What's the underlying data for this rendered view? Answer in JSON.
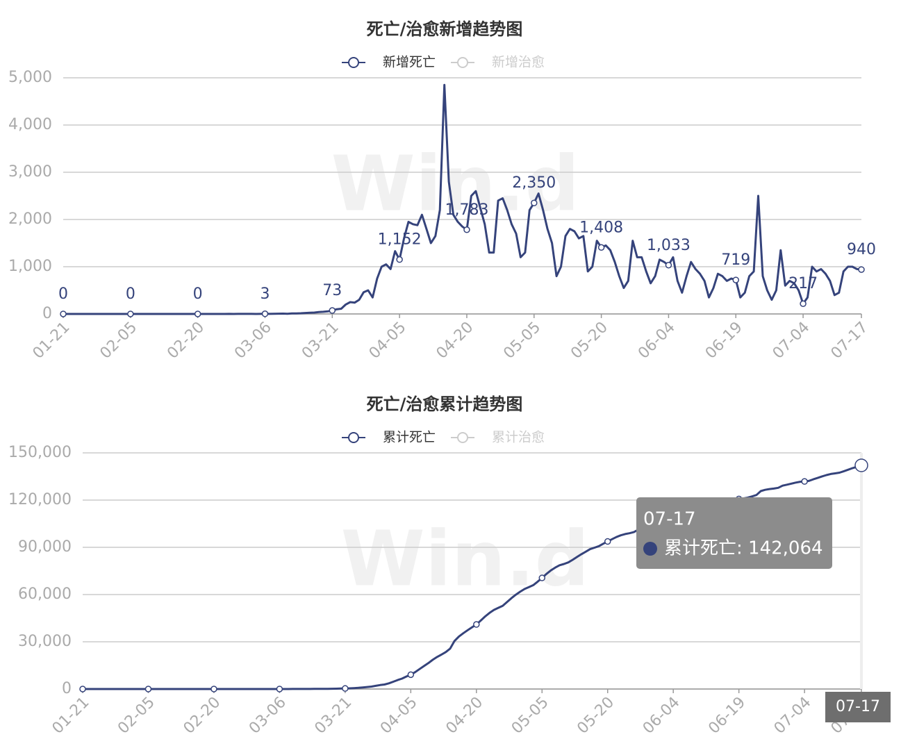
{
  "chart_data": [
    {
      "type": "line",
      "title": "死亡/治愈新增趋势图",
      "watermark": "Win.d",
      "categories": [
        "01-21",
        null,
        null,
        null,
        null,
        null,
        null,
        null,
        null,
        null,
        null,
        null,
        null,
        null,
        null,
        "02-05",
        null,
        null,
        null,
        null,
        null,
        null,
        null,
        null,
        null,
        null,
        null,
        null,
        null,
        null,
        "02-20",
        null,
        null,
        null,
        null,
        null,
        null,
        null,
        null,
        null,
        null,
        null,
        null,
        null,
        null,
        "03-06",
        null,
        null,
        null,
        null,
        null,
        null,
        null,
        null,
        null,
        null,
        null,
        null,
        null,
        null,
        "03-21",
        null,
        null,
        null,
        null,
        null,
        null,
        null,
        null,
        null,
        null,
        null,
        null,
        null,
        null,
        "04-05",
        null,
        null,
        null,
        null,
        null,
        null,
        null,
        null,
        null,
        null,
        null,
        null,
        null,
        null,
        "04-20",
        null,
        null,
        null,
        null,
        null,
        null,
        null,
        null,
        null,
        null,
        null,
        null,
        null,
        null,
        "05-05",
        null,
        null,
        null,
        null,
        null,
        null,
        null,
        null,
        null,
        null,
        null,
        null,
        null,
        null,
        "05-20",
        null,
        null,
        null,
        null,
        null,
        null,
        null,
        null,
        null,
        null,
        null,
        null,
        null,
        null,
        "06-04",
        null,
        null,
        null,
        null,
        null,
        null,
        null,
        null,
        null,
        null,
        null,
        null,
        null,
        null,
        "06-19",
        null,
        null,
        null,
        null,
        null,
        null,
        null,
        null,
        null,
        null,
        null,
        null,
        null,
        null,
        "07-04",
        null,
        null,
        null,
        null,
        null,
        null,
        null,
        null,
        null,
        null,
        null,
        null,
        "07-17"
      ],
      "series": [
        {
          "name": "新增死亡",
          "color": "#35437b",
          "values": [
            0,
            0,
            0,
            0,
            0,
            0,
            0,
            0,
            0,
            0,
            0,
            0,
            0,
            0,
            0,
            0,
            0,
            0,
            0,
            0,
            0,
            0,
            0,
            0,
            0,
            0,
            0,
            0,
            0,
            0,
            0,
            0,
            0,
            0,
            0,
            0,
            0,
            1,
            0,
            1,
            2,
            1,
            1,
            0,
            2,
            3,
            2,
            4,
            6,
            8,
            5,
            10,
            12,
            15,
            20,
            25,
            30,
            40,
            45,
            55,
            73,
            100,
            110,
            200,
            250,
            240,
            300,
            460,
            500,
            350,
            750,
            1000,
            1050,
            950,
            1330,
            1152,
            1600,
            1950,
            1900,
            1880,
            2100,
            1800,
            1500,
            1650,
            2200,
            4850,
            2800,
            2100,
            1950,
            1850,
            1783,
            2500,
            2600,
            2250,
            1900,
            1300,
            1300,
            2400,
            2450,
            2200,
            1900,
            1700,
            1200,
            1300,
            2200,
            2350,
            2550,
            2200,
            1800,
            1500,
            800,
            1000,
            1650,
            1800,
            1750,
            1600,
            1650,
            900,
            1000,
            1550,
            1408,
            1450,
            1350,
            1100,
            800,
            550,
            700,
            1550,
            1200,
            1200,
            900,
            650,
            800,
            1150,
            1100,
            1033,
            1200,
            700,
            450,
            800,
            1100,
            950,
            850,
            700,
            350,
            550,
            850,
            800,
            700,
            750,
            719,
            350,
            450,
            800,
            900,
            2500,
            800,
            500,
            300,
            500,
            1350,
            600,
            700,
            650,
            500,
            217,
            350,
            1000,
            900,
            950,
            850,
            700,
            400,
            450,
            900,
            1000,
            1000,
            950,
            940
          ],
          "value_labels": [
            "0",
            null,
            null,
            null,
            null,
            null,
            null,
            null,
            null,
            null,
            null,
            null,
            null,
            null,
            null,
            "0",
            null,
            null,
            null,
            null,
            null,
            null,
            null,
            null,
            null,
            null,
            null,
            null,
            null,
            null,
            "0",
            null,
            null,
            null,
            null,
            null,
            null,
            null,
            null,
            null,
            null,
            null,
            null,
            null,
            null,
            "3",
            null,
            null,
            null,
            null,
            null,
            null,
            null,
            null,
            null,
            null,
            null,
            null,
            null,
            null,
            "73",
            null,
            null,
            null,
            null,
            null,
            null,
            null,
            null,
            null,
            null,
            null,
            null,
            null,
            null,
            "1,152",
            null,
            null,
            null,
            null,
            null,
            null,
            null,
            null,
            null,
            null,
            null,
            null,
            null,
            null,
            "1,783",
            null,
            null,
            null,
            null,
            null,
            null,
            null,
            null,
            null,
            null,
            null,
            null,
            null,
            null,
            "2,350",
            null,
            null,
            null,
            null,
            null,
            null,
            null,
            null,
            null,
            null,
            null,
            null,
            null,
            null,
            "1,408",
            null,
            null,
            null,
            null,
            null,
            null,
            null,
            null,
            null,
            null,
            null,
            null,
            null,
            null,
            "1,033",
            null,
            null,
            null,
            null,
            null,
            null,
            null,
            null,
            null,
            null,
            null,
            null,
            null,
            null,
            "719",
            null,
            null,
            null,
            null,
            null,
            null,
            null,
            null,
            null,
            null,
            null,
            null,
            null,
            null,
            "217",
            null,
            null,
            null,
            null,
            null,
            null,
            null,
            null,
            null,
            null,
            null,
            null,
            "940"
          ]
        },
        {
          "name": "新增治愈",
          "color": "#cccccc",
          "visible": false
        }
      ],
      "ylim": [
        0,
        5000
      ],
      "yticks": [
        0,
        {
          "value": 1000,
          "label": "1,000"
        },
        {
          "value": 2000,
          "label": "2,000"
        },
        {
          "value": 3000,
          "label": "3,000"
        },
        {
          "value": 4000,
          "label": "4,000"
        },
        {
          "value": 5000,
          "label": "5,000"
        }
      ],
      "grid": true
    },
    {
      "type": "line",
      "title": "死亡/治愈累计趋势图",
      "watermark": "Win.d",
      "categories": [
        "01-21",
        null,
        null,
        null,
        null,
        null,
        null,
        null,
        null,
        null,
        null,
        null,
        null,
        null,
        null,
        "02-05",
        null,
        null,
        null,
        null,
        null,
        null,
        null,
        null,
        null,
        null,
        null,
        null,
        null,
        null,
        "02-20",
        null,
        null,
        null,
        null,
        null,
        null,
        null,
        null,
        null,
        null,
        null,
        null,
        null,
        null,
        "03-06",
        null,
        null,
        null,
        null,
        null,
        null,
        null,
        null,
        null,
        null,
        null,
        null,
        null,
        null,
        "03-21",
        null,
        null,
        null,
        null,
        null,
        null,
        null,
        null,
        null,
        null,
        null,
        null,
        null,
        null,
        "04-05",
        null,
        null,
        null,
        null,
        null,
        null,
        null,
        null,
        null,
        null,
        null,
        null,
        null,
        null,
        "04-20",
        null,
        null,
        null,
        null,
        null,
        null,
        null,
        null,
        null,
        null,
        null,
        null,
        null,
        null,
        "05-05",
        null,
        null,
        null,
        null,
        null,
        null,
        null,
        null,
        null,
        null,
        null,
        null,
        null,
        null,
        "05-20",
        null,
        null,
        null,
        null,
        null,
        null,
        null,
        null,
        null,
        null,
        null,
        null,
        null,
        null,
        "06-04",
        null,
        null,
        null,
        null,
        null,
        null,
        null,
        null,
        null,
        null,
        null,
        null,
        null,
        null,
        "06-19",
        null,
        null,
        null,
        null,
        null,
        null,
        null,
        null,
        null,
        null,
        null,
        null,
        null,
        null,
        "07-04",
        null,
        null,
        null,
        null,
        null,
        null,
        null,
        null,
        null,
        null,
        null,
        null,
        "07-17"
      ],
      "series": [
        {
          "name": "累计死亡",
          "color": "#35437b",
          "values": [
            0,
            0,
            0,
            0,
            0,
            0,
            0,
            0,
            0,
            0,
            0,
            0,
            0,
            0,
            0,
            0,
            0,
            0,
            0,
            0,
            0,
            0,
            0,
            0,
            0,
            0,
            0,
            0,
            0,
            0,
            0,
            0,
            0,
            0,
            0,
            0,
            0,
            1,
            1,
            2,
            4,
            5,
            6,
            6,
            8,
            11,
            13,
            17,
            23,
            31,
            36,
            46,
            58,
            73,
            93,
            118,
            148,
            188,
            233,
            288,
            361,
            461,
            571,
            771,
            1021,
            1261,
            1561,
            2021,
            2521,
            2871,
            3621,
            4621,
            5671,
            6621,
            7951,
            9103,
            10703,
            12653,
            14553,
            16433,
            18533,
            20333,
            21833,
            23483,
            25683,
            30533,
            33333,
            35433,
            37383,
            39233,
            41016,
            43516,
            46116,
            48366,
            50266,
            51566,
            52866,
            55266,
            57716,
            59916,
            61816,
            63516,
            64716,
            66016,
            68216,
            70566,
            73116,
            75316,
            77116,
            78616,
            79416,
            80416,
            82066,
            83866,
            85616,
            87216,
            88866,
            89766,
            90766,
            92316,
            93724,
            95174,
            96524,
            97624,
            98424,
            98974,
            99674,
            101224,
            102424,
            103624,
            104524,
            105174,
            105974,
            107124,
            108224,
            109257,
            110457,
            111157,
            111607,
            112407,
            113507,
            114457,
            115307,
            116007,
            116357,
            116907,
            117757,
            118557,
            119257,
            120007,
            120726,
            121076,
            121526,
            122326,
            123226,
            125726,
            126526,
            127026,
            127326,
            127826,
            129176,
            129776,
            130476,
            131126,
            131626,
            131843,
            132193,
            133193,
            134093,
            135043,
            135893,
            136593,
            136993,
            137443,
            138343,
            139343,
            140343,
            141124,
            142064
          ]
        },
        {
          "name": "累计治愈",
          "color": "#cccccc",
          "visible": false
        }
      ],
      "ylim": [
        0,
        150000
      ],
      "yticks": [
        0,
        {
          "value": 30000,
          "label": "30,000"
        },
        {
          "value": 60000,
          "label": "60,000"
        },
        {
          "value": 90000,
          "label": "90,000"
        },
        {
          "value": 120000,
          "label": "120,000"
        },
        {
          "value": 150000,
          "label": "150,000"
        }
      ],
      "grid": true,
      "tooltip": {
        "category": "07-17",
        "text": "累计死亡: 142,064"
      }
    }
  ]
}
